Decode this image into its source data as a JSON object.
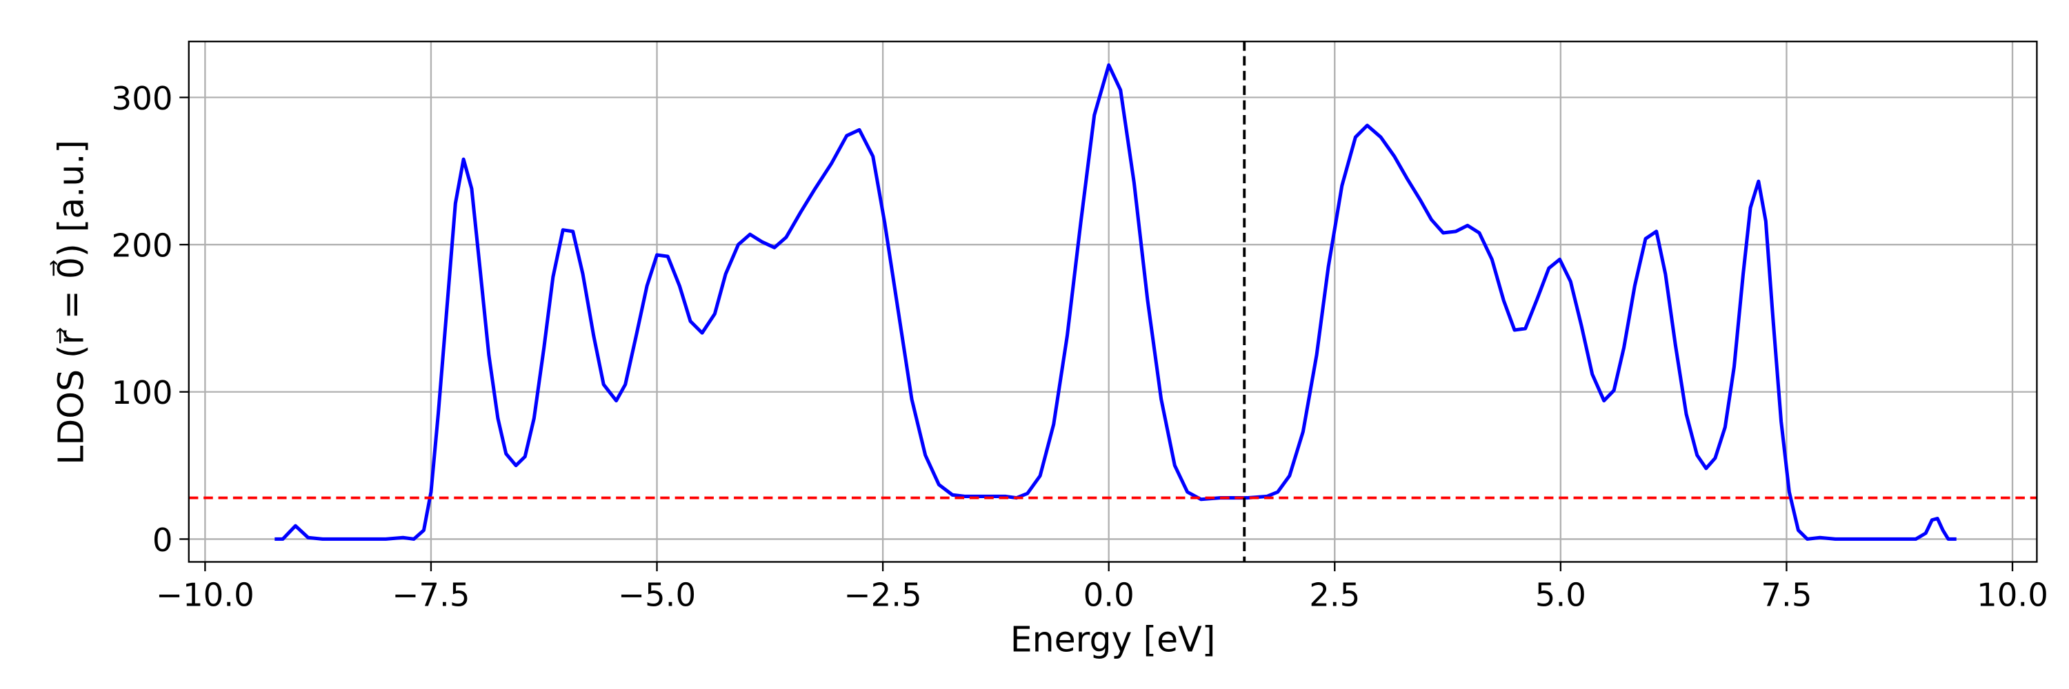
{
  "chart_data": {
    "type": "line",
    "xlabel": "Energy [eV]",
    "ylabel": "LDOS (r⃗ = 0⃗) [a.u.]",
    "xlim": [
      -10.18,
      10.27
    ],
    "ylim": [
      -15.5,
      338
    ],
    "xticks": [
      {
        "value": -10,
        "label": "−10.0"
      },
      {
        "value": -7.5,
        "label": "−7.5"
      },
      {
        "value": -5,
        "label": "−5.0"
      },
      {
        "value": -2.5,
        "label": "−2.5"
      },
      {
        "value": 0,
        "label": "0.0"
      },
      {
        "value": 2.5,
        "label": "2.5"
      },
      {
        "value": 5,
        "label": "5.0"
      },
      {
        "value": 7.5,
        "label": "7.5"
      },
      {
        "value": 10,
        "label": "10.0"
      }
    ],
    "yticks": [
      0,
      100,
      200,
      300
    ],
    "grid": true,
    "series": [
      {
        "color": "#0000ff",
        "x": [
          -9.23,
          -9.14,
          -9.0,
          -8.86,
          -8.7,
          -8.3,
          -8.0,
          -7.81,
          -7.69,
          -7.58,
          -7.5,
          -7.42,
          -7.32,
          -7.23,
          -7.14,
          -7.05,
          -6.96,
          -6.86,
          -6.76,
          -6.67,
          -6.56,
          -6.46,
          -6.36,
          -6.25,
          -6.15,
          -6.04,
          -5.93,
          -5.82,
          -5.7,
          -5.59,
          -5.45,
          -5.35,
          -5.23,
          -5.11,
          -5.0,
          -4.88,
          -4.75,
          -4.63,
          -4.5,
          -4.36,
          -4.24,
          -4.1,
          -3.97,
          -3.84,
          -3.7,
          -3.57,
          -3.41,
          -3.25,
          -3.07,
          -2.9,
          -2.76,
          -2.61,
          -2.48,
          -2.33,
          -2.18,
          -2.03,
          -1.88,
          -1.73,
          -1.59,
          -1.36,
          -1.14,
          -1.02,
          -0.9,
          -0.76,
          -0.61,
          -0.46,
          -0.31,
          -0.16,
          0.0,
          0.13,
          0.28,
          0.43,
          0.58,
          0.73,
          0.87,
          1.02,
          1.23,
          1.53,
          1.75,
          1.87,
          2.0,
          2.15,
          2.3,
          2.43,
          2.58,
          2.73,
          2.86,
          3.01,
          3.16,
          3.3,
          3.45,
          3.57,
          3.7,
          3.84,
          3.97,
          4.1,
          4.24,
          4.37,
          4.49,
          4.61,
          4.74,
          4.87,
          4.99,
          5.11,
          5.23,
          5.35,
          5.48,
          5.59,
          5.7,
          5.82,
          5.94,
          6.06,
          6.16,
          6.27,
          6.39,
          6.51,
          6.61,
          6.71,
          6.82,
          6.92,
          7.02,
          7.1,
          7.19,
          7.27,
          7.35,
          7.44,
          7.53,
          7.63,
          7.73,
          7.87,
          8.04,
          8.34,
          8.64,
          8.93,
          9.04,
          9.11,
          9.17,
          9.23,
          9.29,
          9.38
        ],
        "values": [
          0,
          0,
          9,
          1,
          0,
          0,
          0,
          1,
          0,
          6,
          32,
          85,
          160,
          228,
          258,
          238,
          185,
          125,
          82,
          58,
          50,
          56,
          82,
          130,
          178,
          210,
          209,
          180,
          138,
          105,
          94,
          105,
          138,
          172,
          193,
          192,
          172,
          148,
          140,
          153,
          180,
          200,
          207,
          202,
          198,
          205,
          222,
          238,
          255,
          274,
          278,
          260,
          215,
          155,
          95,
          57,
          37,
          30,
          29,
          29,
          29,
          28,
          31,
          43,
          78,
          138,
          215,
          288,
          322,
          305,
          242,
          162,
          95,
          50,
          32,
          27,
          28,
          28,
          29,
          32,
          43,
          73,
          125,
          185,
          240,
          273,
          281,
          273,
          260,
          245,
          230,
          217,
          208,
          209,
          213,
          208,
          190,
          162,
          142,
          143,
          163,
          184,
          190,
          175,
          145,
          112,
          94,
          101,
          130,
          172,
          204,
          209,
          180,
          132,
          85,
          57,
          48,
          55,
          76,
          117,
          180,
          225,
          243,
          216,
          150,
          80,
          32,
          6,
          0,
          1,
          0,
          0,
          0,
          0,
          4,
          13,
          14,
          6,
          0,
          0
        ]
      }
    ],
    "reference_lines": [
      {
        "orientation": "horizontal",
        "value": 28,
        "color": "#ff0000"
      },
      {
        "orientation": "vertical",
        "value": 1.5,
        "color": "#000000"
      }
    ]
  }
}
